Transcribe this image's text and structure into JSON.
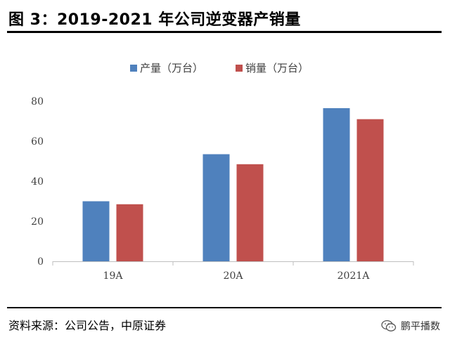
{
  "header": {
    "title": "图 3：2019-2021 年公司逆变器产销量"
  },
  "footer": {
    "source": "资料来源：公司公告，中原证券",
    "watermark": "鹏平播数",
    "watermark_icon": "wechat-icon"
  },
  "colors": {
    "series_production": "#4F81BD",
    "series_sales": "#C0504D",
    "axis": "#BFBFBF",
    "text": "#404040"
  },
  "chart_data": {
    "type": "bar",
    "title": "",
    "xlabel": "",
    "ylabel": "",
    "categories": [
      "19A",
      "20A",
      "2021A"
    ],
    "series": [
      {
        "name": "产量（万台）",
        "values": [
          30,
          53.5,
          76.5
        ]
      },
      {
        "name": "销量（万台）",
        "values": [
          28.5,
          48.5,
          71
        ]
      }
    ],
    "ylim": [
      0,
      80
    ],
    "yticks": [
      0,
      20,
      40,
      60,
      80
    ],
    "grid": false,
    "legend": "top-center"
  }
}
